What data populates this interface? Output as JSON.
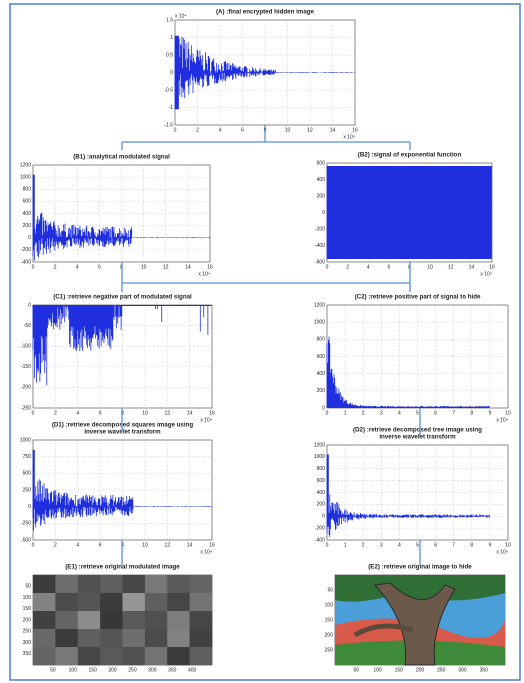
{
  "panels": [
    {
      "title": [
        "(A) :final encrypted hidden image"
      ],
      "y_exponent": "x 10⁴",
      "x_exponent": "x 10⁴",
      "yticks": [
        1.5,
        1,
        0.5,
        0,
        -0.5,
        -1,
        -1.5
      ],
      "xticks": [
        0,
        2,
        4,
        6,
        8,
        10,
        12,
        14,
        16
      ]
    },
    {
      "title": [
        "(B1) :analytical modulated signal"
      ],
      "x_exponent": "x 10⁴",
      "yticks": [
        1200,
        1000,
        800,
        600,
        400,
        200,
        0,
        -200,
        -400
      ],
      "xticks": [
        0,
        2,
        4,
        6,
        8,
        10,
        12,
        14,
        16
      ]
    },
    {
      "title": [
        "(B2) :signal of exponential function"
      ],
      "x_exponent": "x 10⁴",
      "yticks": [
        600,
        400,
        200,
        0,
        -200,
        -400,
        -600
      ],
      "xticks": [
        0,
        2,
        4,
        6,
        8,
        10,
        12,
        14,
        16
      ]
    },
    {
      "title": [
        "(C1) :retrieve negative part of modulated signal"
      ],
      "x_exponent": "x 10⁴",
      "yticks": [
        0,
        -50,
        -100,
        -150,
        -200,
        -250
      ],
      "xticks": [
        0,
        2,
        4,
        6,
        8,
        10,
        12,
        14,
        16
      ]
    },
    {
      "title": [
        "(C2) :retrieve positive part of signal to hide"
      ],
      "x_exponent": "x 10⁴",
      "yticks": [
        1200,
        1000,
        800,
        600,
        400,
        200,
        0
      ],
      "xticks": [
        0,
        1,
        2,
        3,
        4,
        5,
        6,
        7,
        8,
        9,
        10
      ]
    },
    {
      "title": [
        "(D1) :retrieve decomposed squares image using",
        "inverse wavelet transform"
      ],
      "x_exponent": "x 10⁴",
      "yticks": [
        1000,
        750,
        500,
        250,
        0,
        -250,
        -500
      ],
      "xticks": [
        0,
        2,
        4,
        6,
        8,
        10,
        12,
        14,
        16
      ]
    },
    {
      "title": [
        "(D2) :retrieve decomposed tree image using",
        "inverse wavelet transform"
      ],
      "x_exponent": "x 10⁴",
      "yticks": [
        1200,
        1000,
        800,
        600,
        400,
        200,
        0,
        -200,
        -400
      ],
      "xticks": [
        0,
        1,
        2,
        3,
        4,
        5,
        6,
        7,
        8,
        9,
        10
      ]
    },
    {
      "title": [
        "(E1) :retrieve original modulated image"
      ],
      "yticks": [
        50,
        100,
        150,
        200,
        250,
        300,
        350
      ],
      "xticks": [
        50,
        100,
        150,
        200,
        250,
        300,
        350,
        400
      ]
    },
    {
      "title": [
        "(E2) :retrieve original image to hide"
      ],
      "yticks": [
        50,
        100,
        150,
        200,
        250
      ],
      "xticks": [
        50,
        100,
        150,
        200,
        250,
        300,
        350
      ]
    }
  ]
}
